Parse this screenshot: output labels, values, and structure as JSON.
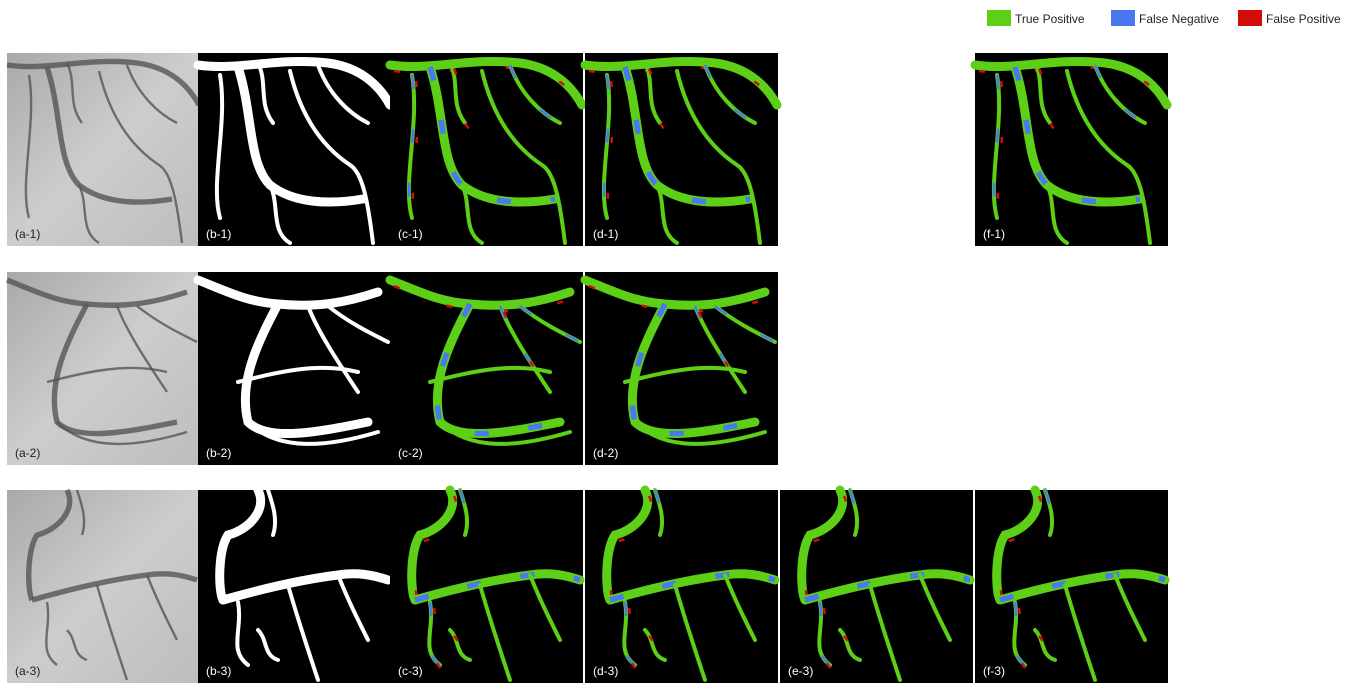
{
  "legend": [
    {
      "label": "True Positive",
      "color": "#5ccf16"
    },
    {
      "label": "False Negative",
      "color": "#4a78f0"
    },
    {
      "label": "False Positive",
      "color": "#d40b0b"
    }
  ],
  "rows": [
    {
      "panels": [
        "(a-1)",
        "(b-1)",
        "(c-1)",
        "(d-1)",
        "(f-1)"
      ]
    },
    {
      "panels": [
        "(a-2)",
        "(b-2)",
        "(c-2)",
        "(d-2)"
      ]
    },
    {
      "panels": [
        "(a-3)",
        "(b-3)",
        "(c-3)",
        "(d-3)",
        "(e-3)",
        "(f-3)"
      ]
    }
  ]
}
